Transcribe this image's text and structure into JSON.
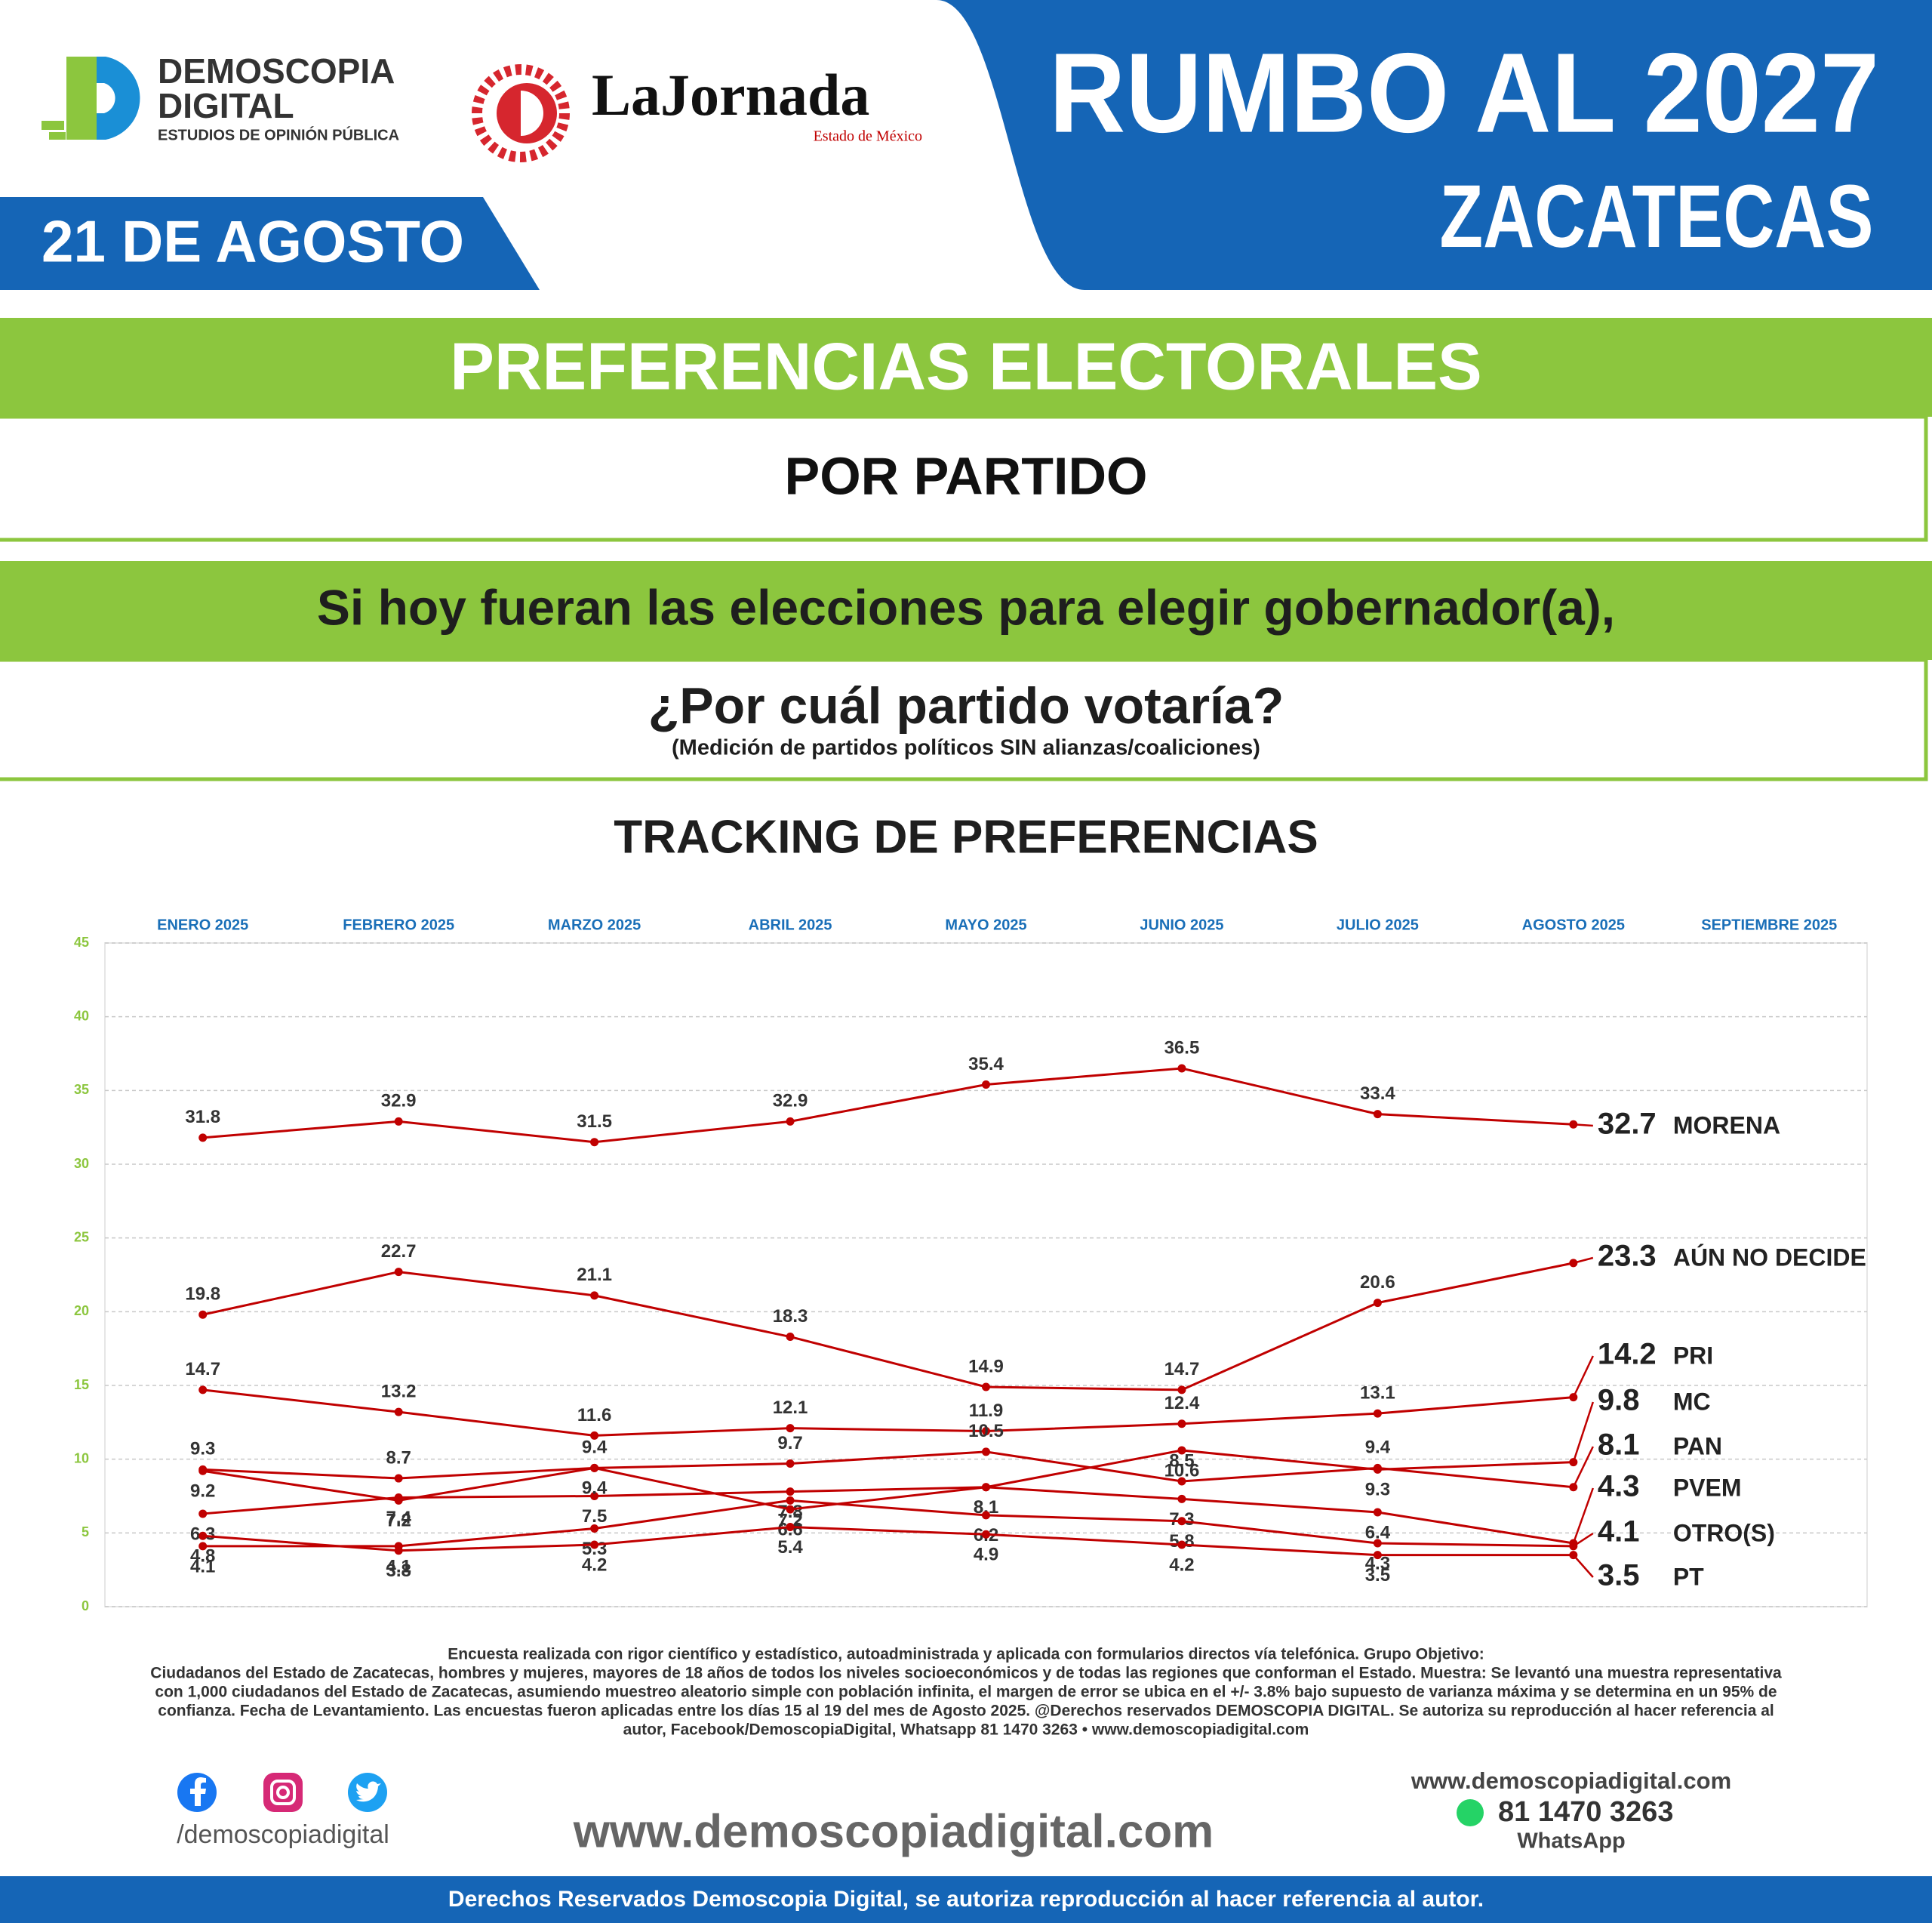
{
  "header": {
    "logo_line1": "DEMOSCOPIA",
    "logo_line2": "DIGITAL",
    "logo_tagline": "ESTUDIOS DE OPINIÓN PÚBLICA",
    "partner_name": "LaJornada",
    "partner_sub": "Estado de México",
    "title": "RUMBO AL 2027",
    "subtitle": "ZACATECAS",
    "date": "21 DE AGOSTO"
  },
  "section": {
    "title": "PREFERENCIAS ELECTORALES",
    "subtitle": "POR PARTIDO",
    "question_line1": "Si hoy fueran las elecciones para elegir gobernador(a),",
    "question_line2": "¿Por cuál partido votaría?",
    "note": "(Medición de partidos políticos SIN alianzas/coaliciones)"
  },
  "chart_data": {
    "type": "line",
    "title": "TRACKING DE PREFERENCIAS",
    "categories": [
      "ENERO 2025",
      "FEBRERO 2025",
      "MARZO 2025",
      "ABRIL 2025",
      "MAYO 2025",
      "JUNIO 2025",
      "JULIO 2025",
      "AGOSTO 2025",
      "SEPTIEMBRE 2025"
    ],
    "ylim": [
      0,
      45
    ],
    "yticks": [
      0,
      5,
      10,
      15,
      20,
      25,
      30,
      35,
      40,
      45
    ],
    "grid": true,
    "series": [
      {
        "name": "MORENA",
        "color": "#c00000",
        "values": [
          31.8,
          32.9,
          31.5,
          32.9,
          35.4,
          36.5,
          33.4,
          32.7,
          null
        ]
      },
      {
        "name": "AÚN NO DECIDE",
        "color": "#c00000",
        "values": [
          19.8,
          22.7,
          21.1,
          18.3,
          14.9,
          14.7,
          20.6,
          23.3,
          null
        ]
      },
      {
        "name": "PRI",
        "color": "#c00000",
        "values": [
          14.7,
          13.2,
          11.6,
          12.1,
          11.9,
          12.4,
          13.1,
          14.2,
          null
        ]
      },
      {
        "name": "MC",
        "color": "#c00000",
        "values": [
          6.3,
          7.4,
          7.5,
          7.8,
          8.1,
          10.6,
          9.3,
          9.8,
          null
        ]
      },
      {
        "name": "PAN",
        "color": "#c00000",
        "values": [
          9.3,
          8.7,
          9.4,
          9.7,
          10.5,
          8.5,
          9.4,
          8.1,
          null
        ]
      },
      {
        "name": "PVEM",
        "color": "#c00000",
        "values": [
          9.2,
          7.2,
          9.4,
          6.6,
          8.1,
          7.3,
          6.4,
          4.3,
          null
        ]
      },
      {
        "name": "OTRO(S)",
        "color": "#c00000",
        "values": [
          4.1,
          4.1,
          5.3,
          7.2,
          6.2,
          5.8,
          4.3,
          4.1,
          null
        ]
      },
      {
        "name": "PT",
        "color": "#c00000",
        "values": [
          4.8,
          3.8,
          4.2,
          5.4,
          4.9,
          4.2,
          3.5,
          3.5,
          null
        ]
      }
    ]
  },
  "footer": {
    "methodology": [
      "Encuesta realizada con rigor científico y estadístico, autoadministrada y aplicada con formularios directos vía telefónica. Grupo Objetivo:",
      "Ciudadanos del Estado de Zacatecas, hombres y mujeres, mayores de 18 años de todos los niveles socioeconómicos y de todas las regiones que conforman el Estado. Muestra: Se levantó una muestra representativa",
      "con 1,000 ciudadanos del Estado de Zacatecas, asumiendo muestreo aleatorio simple con población infinita, el margen de error se ubica en el +/- 3.8% bajo supuesto de varianza máxima y se determina en un 95% de",
      "confianza. Fecha de Levantamiento. Las encuestas fueron aplicadas entre los días 15 al 19 del mes de Agosto 2025. @Derechos reservados DEMOSCOPIA DIGITAL. Se autoriza su reproducción al hacer referencia al",
      "autor, Facebook/DemoscopiaDigital, Whatsapp 81 1470 3263 • www.demoscopiadigital.com"
    ],
    "social_handle": "/demoscopiadigital",
    "website_big": "www.demoscopiadigital.com",
    "website": "www.demoscopiadigital.com",
    "phone": "81 1470 3263",
    "whatsapp_label": "WhatsApp",
    "rights": "Derechos Reservados Demoscopia Digital, se autoriza reproducción al hacer referencia al autor."
  }
}
